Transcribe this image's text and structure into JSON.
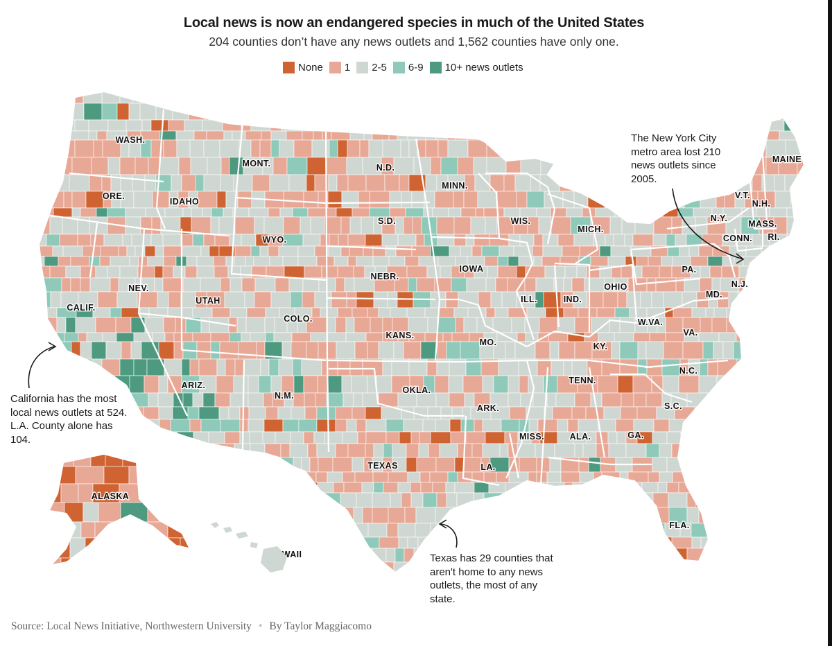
{
  "header": {
    "title": "Local news is now an endangered species in much of the United States",
    "subtitle": "204 counties don’t have any news outlets and 1,562 counties have only one."
  },
  "legend": [
    {
      "label": "None",
      "color": "#cf6432"
    },
    {
      "label": "1",
      "color": "#e8a896"
    },
    {
      "label": "2-5",
      "color": "#cfd7d2"
    },
    {
      "label": "6-9",
      "color": "#8ec9b9"
    },
    {
      "label": "10+ news outlets",
      "color": "#4e9a80"
    }
  ],
  "state_labels": [
    "WASH.",
    "ORE.",
    "CALIF.",
    "NEV.",
    "IDAHO",
    "MONT.",
    "WYO.",
    "UTAH",
    "ARIZ.",
    "COLO.",
    "N.M.",
    "N.D.",
    "S.D.",
    "NEBR.",
    "KANS.",
    "OKLA.",
    "TEXAS",
    "MINN.",
    "IOWA",
    "MO.",
    "ARK.",
    "LA.",
    "WIS.",
    "ILL.",
    "MICH.",
    "IND.",
    "OHIO",
    "KY.",
    "TENN.",
    "MISS.",
    "ALA.",
    "GA.",
    "FLA.",
    "S.C.",
    "N.C.",
    "VA.",
    "W.VA.",
    "PA.",
    "N.Y.",
    "V.T.",
    "N.H.",
    "MAINE",
    "MASS.",
    "CONN.",
    "RI.",
    "N.J.",
    "MD.",
    "ALASKA",
    "HAWAII"
  ],
  "annotations": {
    "california": "California has the most local news outlets at 524. L.A. County alone has 104.",
    "texas": "Texas has 29 counties that aren't home to any news outlets, the most of any state.",
    "nyc": "The New York City metro area lost 210 news outlets since 2005."
  },
  "footer": {
    "source": "Source: Local News Initiative, Northwestern University",
    "byline": "By Taylor Maggiacomo"
  }
}
